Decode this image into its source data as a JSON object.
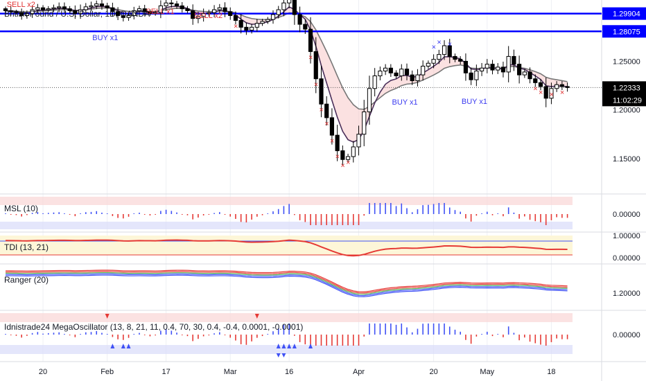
{
  "title": "British Pound / U.S. Dollar, 1D, OANDA",
  "colors": {
    "up": "#ffffff",
    "down": "#000000",
    "level": "#0000ff",
    "sell": "#e03030",
    "buy": "#3a3af0",
    "ema_fill": "#f8c8c8",
    "red": "#e53935",
    "blue": "#3f51f5",
    "green": "#4caf50"
  },
  "price_axis": {
    "ticks": [
      "1.25000",
      "1.20000",
      "1.15000"
    ],
    "current": "1.22333",
    "countdown": "11:02:29"
  },
  "levels": [
    {
      "label": "1.29904",
      "value": 1.29904
    },
    {
      "label": "1.28075",
      "value": 1.28075
    }
  ],
  "signals": [
    {
      "text": "SELL x2",
      "type": "sell",
      "idx": 1
    },
    {
      "text": "SELL x1",
      "type": "sell",
      "idx": 27
    },
    {
      "text": "SELL x2",
      "type": "sell",
      "idx": 36
    },
    {
      "text": "BUY x1",
      "type": "buy",
      "idx": 17
    },
    {
      "text": "BUY x1",
      "type": "buy",
      "idx": 73
    },
    {
      "text": "BUY x1",
      "type": "buy",
      "idx": 86
    }
  ],
  "x_axis": [
    "20",
    "Feb",
    "17",
    "Mar",
    "16",
    "Apr",
    "20",
    "May",
    "18"
  ],
  "panels": {
    "msl": {
      "label": "MSL (10)",
      "tick": "0.00000"
    },
    "tdi": {
      "label": "TDI (13, 21)",
      "ticks": [
        "1.00000",
        "0.00000"
      ]
    },
    "ranger": {
      "label": "Ranger (20)",
      "tick": "1.20000"
    },
    "mega": {
      "label": "Idnistrade24 MegaOscillator (13, 8, 21, 11, 0.4, 70, 30, 0.4, -0.4, 0.0001, -0.0001)",
      "tick": "0.00000"
    }
  },
  "chart_data": {
    "type": "candlestick",
    "instrument": "British Pound / U.S. Dollar",
    "timeframe": "1D",
    "ylim": [
      1.115,
      1.313
    ],
    "close": [
      1.302,
      1.301,
      1.3,
      1.297,
      1.299,
      1.303,
      1.305,
      1.303,
      1.304,
      1.305,
      1.306,
      1.304,
      1.302,
      1.299,
      1.303,
      1.306,
      1.307,
      1.309,
      1.307,
      1.305,
      1.301,
      1.297,
      1.295,
      1.297,
      1.302,
      1.304,
      1.301,
      1.299,
      1.3,
      1.307,
      1.31,
      1.309,
      1.307,
      1.304,
      1.302,
      1.294,
      1.296,
      1.299,
      1.3,
      1.303,
      1.305,
      1.301,
      1.297,
      1.292,
      1.285,
      1.282,
      1.285,
      1.289,
      1.291,
      1.293,
      1.298,
      1.303,
      1.31,
      1.316,
      1.298,
      1.288,
      1.283,
      1.26,
      1.232,
      1.206,
      1.192,
      1.174,
      1.158,
      1.149,
      1.152,
      1.162,
      1.175,
      1.198,
      1.222,
      1.235,
      1.24,
      1.243,
      1.238,
      1.235,
      1.242,
      1.236,
      1.23,
      1.236,
      1.245,
      1.248,
      1.252,
      1.257,
      1.266,
      1.255,
      1.252,
      1.25,
      1.238,
      1.231,
      1.24,
      1.243,
      1.247,
      1.241,
      1.244,
      1.239,
      1.255,
      1.247,
      1.236,
      1.239,
      1.232,
      1.228,
      1.224,
      1.212,
      1.222,
      1.226,
      1.224,
      1.223
    ],
    "open_note": "open of each day = previous close",
    "x_ticks": [
      "20",
      "Feb",
      "17",
      "Mar",
      "16",
      "Apr",
      "20",
      "May",
      "18"
    ]
  }
}
